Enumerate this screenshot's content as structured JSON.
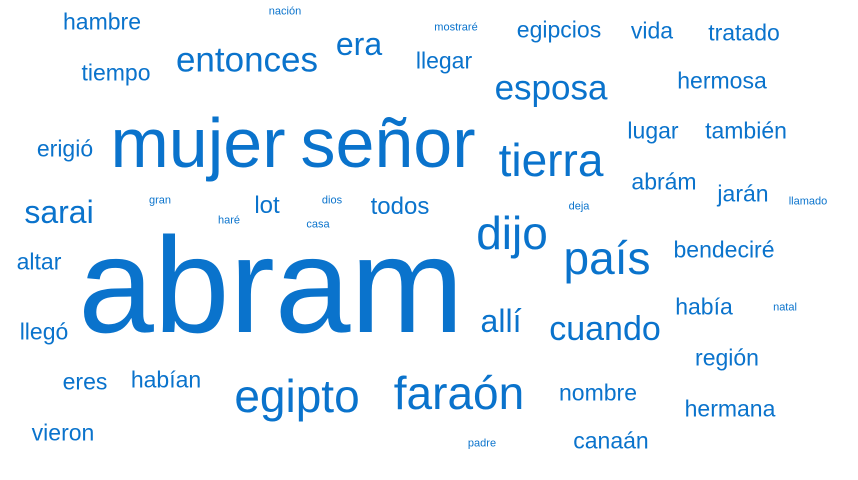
{
  "colors": {
    "word": "#0a73cc",
    "background": "#ffffff"
  },
  "words": [
    {
      "id": "abram",
      "text": "abram"
    },
    {
      "id": "mujer",
      "text": "mujer"
    },
    {
      "id": "senor",
      "text": "señor"
    },
    {
      "id": "tierra",
      "text": "tierra"
    },
    {
      "id": "egipto",
      "text": "egipto"
    },
    {
      "id": "faraon",
      "text": "faraón"
    },
    {
      "id": "dijo",
      "text": "dijo"
    },
    {
      "id": "pais",
      "text": "país"
    },
    {
      "id": "esposa",
      "text": "esposa"
    },
    {
      "id": "entonces",
      "text": "entonces"
    },
    {
      "id": "cuando",
      "text": "cuando"
    },
    {
      "id": "sarai",
      "text": "sarai"
    },
    {
      "id": "era",
      "text": "era"
    },
    {
      "id": "alli",
      "text": "allí"
    },
    {
      "id": "todos",
      "text": "todos"
    },
    {
      "id": "lot",
      "text": "lot"
    },
    {
      "id": "egipcios",
      "text": "egipcios"
    },
    {
      "id": "hermosa",
      "text": "hermosa"
    },
    {
      "id": "tratado",
      "text": "tratado"
    },
    {
      "id": "vida",
      "text": "vida"
    },
    {
      "id": "llegar",
      "text": "llegar"
    },
    {
      "id": "hambre",
      "text": "hambre"
    },
    {
      "id": "tiempo",
      "text": "tiempo"
    },
    {
      "id": "erigio",
      "text": "erigió"
    },
    {
      "id": "lugar",
      "text": "lugar"
    },
    {
      "id": "tambien",
      "text": "también"
    },
    {
      "id": "abram-accent",
      "text": "abrám"
    },
    {
      "id": "jaran",
      "text": "jarán"
    },
    {
      "id": "bendecire",
      "text": "bendeciré"
    },
    {
      "id": "habia",
      "text": "había"
    },
    {
      "id": "region",
      "text": "región"
    },
    {
      "id": "hermana",
      "text": "hermana"
    },
    {
      "id": "nombre",
      "text": "nombre"
    },
    {
      "id": "canaan",
      "text": "canaán"
    },
    {
      "id": "altar",
      "text": "altar"
    },
    {
      "id": "llego",
      "text": "llegó"
    },
    {
      "id": "eres",
      "text": "eres"
    },
    {
      "id": "habian",
      "text": "habían"
    },
    {
      "id": "vieron",
      "text": "vieron"
    },
    {
      "id": "nacion",
      "text": "nación"
    },
    {
      "id": "mostrare",
      "text": "mostraré"
    },
    {
      "id": "gran",
      "text": "gran"
    },
    {
      "id": "dios",
      "text": "dios"
    },
    {
      "id": "hare",
      "text": "haré"
    },
    {
      "id": "casa",
      "text": "casa"
    },
    {
      "id": "deja",
      "text": "deja"
    },
    {
      "id": "llamado",
      "text": "llamado"
    },
    {
      "id": "natal",
      "text": "natal"
    },
    {
      "id": "padre",
      "text": "padre"
    }
  ]
}
